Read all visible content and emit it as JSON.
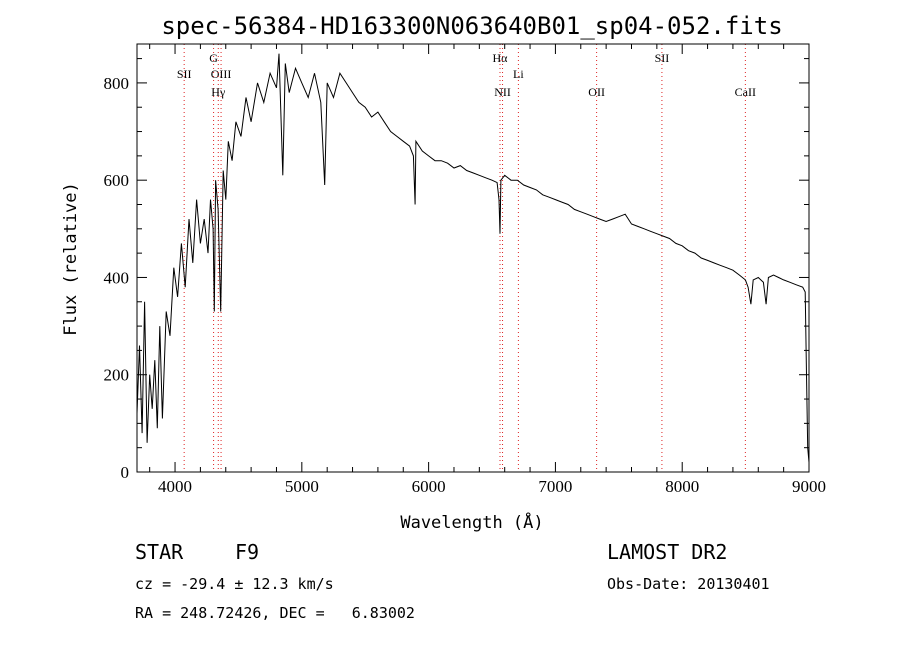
{
  "chart_data": {
    "type": "line",
    "title": "spec-56384-HD163300N063640B01_sp04-052.fits",
    "xlabel": "Wavelength (Å)",
    "ylabel": "Flux (relative)",
    "xlim": [
      3700,
      9000
    ],
    "ylim": [
      0,
      880
    ],
    "xticks": [
      4000,
      5000,
      6000,
      7000,
      8000,
      9000
    ],
    "yticks": [
      0,
      200,
      400,
      600,
      800
    ],
    "grid": false,
    "series": [
      {
        "color": "#000000",
        "x": [
          3700,
          3720,
          3740,
          3760,
          3780,
          3800,
          3820,
          3840,
          3860,
          3880,
          3900,
          3930,
          3960,
          3990,
          4020,
          4050,
          4080,
          4110,
          4140,
          4170,
          4200,
          4230,
          4260,
          4280,
          4300,
          4310,
          4320,
          4340,
          4360,
          4380,
          4400,
          4420,
          4450,
          4480,
          4520,
          4560,
          4600,
          4650,
          4700,
          4750,
          4800,
          4820,
          4850,
          4870,
          4900,
          4950,
          5000,
          5050,
          5100,
          5150,
          5180,
          5200,
          5250,
          5300,
          5350,
          5400,
          5450,
          5500,
          5550,
          5600,
          5650,
          5700,
          5750,
          5800,
          5850,
          5880,
          5893,
          5900,
          5950,
          6000,
          6050,
          6100,
          6150,
          6200,
          6250,
          6300,
          6350,
          6400,
          6450,
          6500,
          6540,
          6555,
          6563,
          6570,
          6600,
          6650,
          6700,
          6750,
          6800,
          6850,
          6900,
          6950,
          7000,
          7050,
          7100,
          7150,
          7200,
          7250,
          7300,
          7350,
          7400,
          7450,
          7500,
          7550,
          7600,
          7650,
          7700,
          7750,
          7800,
          7850,
          7900,
          7950,
          8000,
          8050,
          8100,
          8150,
          8200,
          8250,
          8300,
          8350,
          8400,
          8450,
          8498,
          8520,
          8542,
          8560,
          8600,
          8640,
          8662,
          8680,
          8720,
          8760,
          8800,
          8850,
          8900,
          8950,
          8970,
          8980,
          8990,
          9000
        ],
        "y": [
          120,
          260,
          80,
          350,
          60,
          200,
          130,
          230,
          90,
          300,
          110,
          330,
          280,
          420,
          360,
          470,
          380,
          520,
          430,
          560,
          470,
          520,
          450,
          560,
          500,
          330,
          600,
          540,
          330,
          620,
          560,
          680,
          640,
          720,
          690,
          770,
          720,
          800,
          760,
          820,
          790,
          860,
          610,
          840,
          780,
          830,
          800,
          770,
          820,
          760,
          590,
          800,
          770,
          820,
          800,
          780,
          760,
          750,
          730,
          740,
          720,
          700,
          690,
          680,
          670,
          650,
          550,
          680,
          660,
          650,
          640,
          640,
          635,
          625,
          630,
          620,
          615,
          610,
          605,
          600,
          595,
          560,
          490,
          600,
          610,
          600,
          600,
          590,
          585,
          580,
          570,
          565,
          560,
          555,
          550,
          540,
          535,
          530,
          525,
          520,
          515,
          520,
          525,
          530,
          510,
          505,
          500,
          495,
          490,
          485,
          480,
          470,
          465,
          455,
          450,
          440,
          435,
          430,
          425,
          420,
          415,
          405,
          395,
          380,
          345,
          395,
          400,
          390,
          345,
          400,
          405,
          400,
          395,
          390,
          385,
          380,
          370,
          200,
          50,
          20
        ]
      }
    ],
    "spectral_lines": [
      {
        "label": "SII",
        "x": 4072
      },
      {
        "label": "G",
        "x": 4304
      },
      {
        "label": "OIII",
        "x": 4363
      },
      {
        "label": "Hγ",
        "x": 4341
      },
      {
        "label": "Hα",
        "x": 6563
      },
      {
        "label": "NII",
        "x": 6583
      },
      {
        "label": "Li",
        "x": 6708
      },
      {
        "label": "OII",
        "x": 7325
      },
      {
        "label": "SII",
        "x": 7840
      },
      {
        "label": "CaII",
        "x": 8498
      }
    ]
  },
  "info": {
    "object_type": "STAR",
    "subclass": "F9",
    "survey": "LAMOST DR2",
    "redshift": "cz = -29.4 ± 12.3 km/s",
    "obs_date": "Obs-Date: 20130401",
    "coords": "RA = 248.72426, DEC =   6.83002"
  }
}
